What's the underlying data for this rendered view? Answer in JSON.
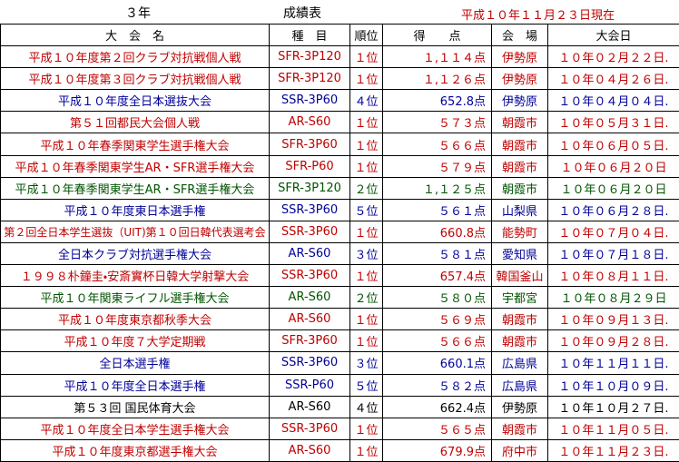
{
  "header": {
    "grade": "３年",
    "title": "成績表",
    "date": "平成１０年１１月２３日現在"
  },
  "table": {
    "columns": [
      "大　会　名",
      "種　目",
      "順位",
      "得　　点",
      "会　場",
      "大会日"
    ],
    "rows": [
      {
        "color": "#c00000",
        "cells": [
          "平成１０年度第２回クラブ対抗戦個人戦",
          "SFR-3P120",
          "１位",
          "１,１１４点",
          "伊勢原",
          "１０年０２月２２日."
        ]
      },
      {
        "color": "#c00000",
        "cells": [
          "平成１０年度第３回クラブ対抗戦個人戦",
          "SFR-3P120",
          "１位",
          "１,１２６点",
          "伊勢原",
          "１０年０４月２６日."
        ]
      },
      {
        "color": "#000099",
        "cells": [
          "平成１０年度全日本選抜大会",
          "SSR-3P60",
          "４位",
          "652.8点",
          "伊勢原",
          "１０年０４月０４日."
        ]
      },
      {
        "color": "#c00000",
        "cells": [
          "第５１回都民大会個人戦",
          "AR-S60",
          "１位",
          "５７３点",
          "朝霞市",
          "１０年０５月３１日."
        ]
      },
      {
        "color": "#c00000",
        "cells": [
          "平成１０年春季関東学生選手権大会",
          "SFR-3P60",
          "１位",
          "５６６点",
          "朝霞市",
          "１０年０６月０５日."
        ]
      },
      {
        "color": "#c00000",
        "cells": [
          "平成１０年春季関東学生AR・SFR選手権大会",
          "SFR-P60",
          "１位",
          "５７９点",
          "朝霞市",
          "１０年０６月２０日"
        ]
      },
      {
        "color": "#005500",
        "cells": [
          "平成１０年春季関東学生AR・SFR選手権大会",
          "SFR-3P120",
          "２位",
          "１,１２５点",
          "朝霞市",
          "１０年０６月２０日"
        ]
      },
      {
        "color": "#000099",
        "cells": [
          "平成１０年度東日本選手権",
          "SSR-3P60",
          "５位",
          "５６１点",
          "山梨県",
          "１０年０６月２８日."
        ]
      },
      {
        "color": "#c00000",
        "cells": [
          "第２回全日本学生選抜（UIT)第１０回日韓代表選考会",
          "SSR-3P60",
          "１位",
          "660.8点",
          "能勢町",
          "１０年０７月０４日."
        ]
      },
      {
        "color": "#000099",
        "cells": [
          "全日本クラブ対抗選手権大会",
          "AR-S60",
          "３位",
          "５８１点",
          "愛知県",
          "１０年０７月１８日."
        ]
      },
      {
        "color": "#c00000",
        "cells": [
          "１９９８朴鐘圭・安斎實杯日韓大学射撃大会",
          "SSR-3P60",
          "１位",
          "657.4点",
          "韓国釜山",
          "１０年０８月１１日."
        ]
      },
      {
        "color": "#005500",
        "cells": [
          "平成１０年関東ライフル選手権大会",
          "AR-S60",
          "２位",
          "５８０点",
          "宇都宮",
          "１０年０８月２９日"
        ]
      },
      {
        "color": "#c00000",
        "cells": [
          "平成１０年度東京都秋季大会",
          "AR-S60",
          "１位",
          "５６９点",
          "朝霞市",
          "１０年０９月１３日."
        ]
      },
      {
        "color": "#c00000",
        "cells": [
          "平成１０年度７大学定期戦",
          "SFR-3P60",
          "１位",
          "５６６点",
          "朝霞市",
          "１０年０９月２８日."
        ]
      },
      {
        "color": "#000099",
        "cells": [
          "全日本選手権",
          "SSR-3P60",
          "３位",
          "660.1点",
          "広島県",
          "１０年１１月１１日."
        ]
      },
      {
        "color": "#000099",
        "cells": [
          "平成１０年度全日本選手権",
          "SSR-P60",
          "５位",
          "５８２点",
          "広島県",
          "１０年１０月０９日."
        ]
      },
      {
        "color": "#000000",
        "cells": [
          "第５３回 国民体育大会",
          "AR-S60",
          "４位",
          "662.4点",
          "伊勢原",
          "１０年１０月２７日."
        ]
      },
      {
        "color": "#c00000",
        "cells": [
          "平成１０年度全日本学生選手権大会",
          "SSR-3P60",
          "１位",
          "５６５点",
          "朝霞市",
          "１０年１１月０５日."
        ]
      },
      {
        "color": "#c00000",
        "cells": [
          "平成１０年度東京都選手権大会",
          "AR-S60",
          "１位",
          "679.9点",
          "府中市",
          "１０年１１月２３日."
        ]
      }
    ]
  }
}
